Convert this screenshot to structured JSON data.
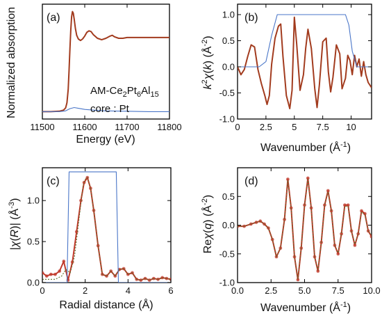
{
  "panels": [
    {
      "id": "a",
      "label": "(a)",
      "type": "line",
      "xlabel": "Energy (eV)",
      "ylabel": "Normalized absorption",
      "xlim": [
        11500,
        11800
      ],
      "ylim": [
        -0.1,
        1.45
      ],
      "xticks": [
        11500,
        11600,
        11700,
        11800
      ],
      "yticks": [],
      "annotations": [
        "AM-Ce2Pt6Al15",
        "core : Pt"
      ],
      "series": [
        {
          "role": "mu",
          "color": "#a23b1e",
          "x": [
            11500,
            11520,
            11540,
            11550,
            11555,
            11558,
            11561,
            11563,
            11565,
            11567,
            11569,
            11571,
            11573,
            11575,
            11578,
            11581,
            11585,
            11590,
            11595,
            11600,
            11605,
            11610,
            11615,
            11620,
            11630,
            11640,
            11650,
            11660,
            11665,
            11670,
            11680,
            11690,
            11700,
            11720,
            11740,
            11760,
            11780,
            11800
          ],
          "y": [
            0.0,
            0.0,
            0.005,
            0.02,
            0.05,
            0.12,
            0.3,
            0.55,
            0.85,
            1.1,
            1.28,
            1.35,
            1.33,
            1.25,
            1.12,
            1.03,
            0.98,
            0.96,
            0.98,
            1.02,
            1.07,
            1.09,
            1.08,
            1.04,
            0.99,
            0.97,
            0.99,
            1.02,
            1.03,
            1.01,
            0.99,
            0.99,
            1.0,
            1.0,
            1.0,
            1.0,
            1.0,
            1.0
          ]
        },
        {
          "role": "background",
          "color": "#4a76c8",
          "x": [
            11500,
            11540,
            11555,
            11565,
            11575,
            11585,
            11600,
            11620,
            11650,
            11700,
            11750,
            11800
          ],
          "y": [
            0.0,
            0.0,
            0.01,
            0.04,
            0.055,
            0.045,
            0.03,
            0.02,
            0.01,
            0.005,
            0.0,
            0.0
          ]
        }
      ]
    },
    {
      "id": "b",
      "label": "(b)",
      "type": "line",
      "xlabel": "Wavenumber (Å⁻¹)",
      "ylabel": "k²χ(k) (Å⁻²)",
      "xlim": [
        0,
        11.8
      ],
      "ylim": [
        -1.0,
        1.2
      ],
      "xticks": [
        0,
        2.5,
        5,
        7.5,
        10
      ],
      "xticklabels": [
        "0",
        "2.5",
        "5",
        "7.5",
        "10"
      ],
      "yticks": [
        -1.0,
        -0.5,
        0.0,
        0.5,
        1.0
      ],
      "yticklabels": [
        "-1.0",
        "-0.5",
        "0.0",
        "0.5",
        "1.0"
      ],
      "series": [
        {
          "role": "k2chi",
          "color": "#a23b1e",
          "x": [
            0,
            0.3,
            0.6,
            0.9,
            1.2,
            1.5,
            1.8,
            2.1,
            2.4,
            2.6,
            2.8,
            3.0,
            3.3,
            3.6,
            3.8,
            4.0,
            4.3,
            4.6,
            4.8,
            5.0,
            5.2,
            5.5,
            5.8,
            6.0,
            6.2,
            6.5,
            6.8,
            7.0,
            7.2,
            7.5,
            7.8,
            8.0,
            8.2,
            8.4,
            8.7,
            9.0,
            9.2,
            9.5,
            9.7,
            9.9,
            10.1,
            10.3,
            10.5,
            10.7,
            10.9,
            11.1,
            11.3,
            11.5,
            11.8
          ],
          "y": [
            0.0,
            -0.15,
            -0.05,
            0.2,
            0.42,
            0.38,
            -0.05,
            -0.32,
            -0.55,
            -0.72,
            -0.55,
            0.05,
            0.55,
            0.78,
            0.82,
            0.2,
            -0.55,
            -0.8,
            -0.45,
            0.95,
            0.45,
            -0.45,
            -0.15,
            0.35,
            0.72,
            0.35,
            -0.42,
            -0.78,
            -0.35,
            0.48,
            0.55,
            -0.1,
            -0.48,
            -0.2,
            0.42,
            0.25,
            -0.42,
            -0.22,
            0.22,
            0.12,
            -0.15,
            0.22,
            0.0,
            0.15,
            -0.18,
            0.1,
            -0.15,
            -0.3,
            -0.4
          ]
        },
        {
          "role": "window",
          "color": "#4a76c8",
          "x": [
            0,
            1.3,
            1.9,
            2.5,
            3.0,
            3.5,
            9.5,
            9.8,
            10.1,
            10.5,
            11.8
          ],
          "y": [
            0,
            0,
            0,
            0.1,
            0.6,
            1.0,
            1.0,
            0.8,
            0.3,
            0.0,
            0.0
          ]
        }
      ]
    },
    {
      "id": "c",
      "label": "(c)",
      "type": "line",
      "xlabel": "Radial distance (Å)",
      "ylabel": "|χ(R)| (Å⁻³)",
      "xlim": [
        0,
        6
      ],
      "ylim": [
        0,
        1.4
      ],
      "xticks": [
        0,
        2,
        4,
        6
      ],
      "xticklabels": [
        "0",
        "2",
        "4",
        "6"
      ],
      "yticks": [
        0.0,
        0.5,
        1.0
      ],
      "yticklabels": [
        "0.0",
        "0.5",
        "1.0"
      ],
      "series": [
        {
          "role": "data",
          "color": "#c0392b",
          "x": [
            0,
            0.2,
            0.4,
            0.6,
            0.8,
            1.0,
            1.2,
            1.4,
            1.6,
            1.8,
            1.95,
            2.1,
            2.25,
            2.4,
            2.6,
            2.8,
            3.0,
            3.2,
            3.4,
            3.6,
            3.8,
            4.0,
            4.2,
            4.4,
            4.6,
            4.8,
            5.0,
            5.2,
            5.4,
            5.6,
            5.8,
            6.0
          ],
          "y": [
            0.12,
            0.08,
            0.1,
            0.1,
            0.14,
            0.26,
            0.03,
            0.25,
            0.62,
            1.0,
            1.22,
            1.28,
            1.15,
            0.88,
            0.45,
            0.1,
            0.08,
            0.14,
            0.08,
            0.16,
            0.17,
            0.1,
            0.12,
            0.04,
            0.03,
            0.05,
            0.03,
            0.05,
            0.04,
            0.06,
            0.05,
            0.04
          ]
        },
        {
          "role": "fit",
          "color": "#5a6e2a",
          "x": [
            0,
            0.3,
            0.6,
            0.9,
            1.1,
            1.3,
            1.5,
            1.7,
            1.9,
            2.0,
            2.1,
            2.25,
            2.4,
            2.6,
            2.8,
            3.0,
            3.2,
            3.4,
            3.6,
            3.8,
            4.0,
            4.2,
            4.4,
            4.6,
            4.8,
            5.0,
            5.2,
            5.4,
            5.6,
            5.8,
            6.0
          ],
          "y": [
            0.04,
            0.04,
            0.04,
            0.08,
            0.16,
            0.12,
            0.32,
            0.75,
            1.18,
            1.26,
            1.28,
            1.15,
            0.88,
            0.45,
            0.1,
            0.08,
            0.14,
            0.08,
            0.16,
            0.17,
            0.1,
            0.12,
            0.04,
            0.03,
            0.05,
            0.03,
            0.05,
            0.04,
            0.06,
            0.05,
            0.04
          ]
        },
        {
          "role": "window",
          "color": "#4a76c8",
          "x": [
            0,
            1.15,
            1.25,
            3.45,
            3.55,
            6.0
          ],
          "y": [
            0,
            0,
            1.35,
            1.35,
            0,
            0
          ]
        }
      ]
    },
    {
      "id": "d",
      "label": "(d)",
      "type": "line",
      "xlabel": "Wavenumber (Å⁻¹)",
      "ylabel": "Reχ(q) (Å⁻²)",
      "xlim": [
        0,
        10
      ],
      "ylim": [
        -1.0,
        1.0
      ],
      "xticks": [
        0,
        2.5,
        5,
        7.5,
        10
      ],
      "xticklabels": [
        "0.0",
        "2.5",
        "5.0",
        "7.5",
        "10.0"
      ],
      "yticks": [
        -1.0,
        -0.5,
        0.0,
        0.5
      ],
      "yticklabels": [
        "-1.0",
        "-0.5",
        "0.0",
        "0.5"
      ],
      "series": [
        {
          "role": "data",
          "color": "#c0392b",
          "x": [
            0,
            0.5,
            1.0,
            1.4,
            1.7,
            2.0,
            2.3,
            2.6,
            2.9,
            3.2,
            3.5,
            3.75,
            4.0,
            4.25,
            4.5,
            4.75,
            5.0,
            5.25,
            5.5,
            5.75,
            6.0,
            6.25,
            6.5,
            6.75,
            7.0,
            7.25,
            7.5,
            7.75,
            8.0,
            8.25,
            8.5,
            8.75,
            9.0,
            9.25,
            9.5,
            9.75,
            10.0
          ],
          "y": [
            -0.02,
            -0.02,
            0.02,
            0.05,
            0.07,
            0.02,
            -0.05,
            -0.25,
            -0.55,
            -0.4,
            0.1,
            0.8,
            0.3,
            -0.55,
            -0.95,
            -0.4,
            0.35,
            0.82,
            0.3,
            -0.55,
            -0.8,
            -0.3,
            0.35,
            0.6,
            0.25,
            -0.35,
            -0.5,
            -0.15,
            0.35,
            0.35,
            -0.1,
            -0.35,
            -0.15,
            0.25,
            0.2,
            -0.1,
            -0.2
          ]
        },
        {
          "role": "fit",
          "color": "#5a6e2a",
          "x": [
            0,
            0.5,
            1.0,
            1.4,
            1.7,
            2.0,
            2.3,
            2.6,
            2.9,
            3.2,
            3.5,
            3.75,
            4.0,
            4.25,
            4.5,
            4.75,
            5.0,
            5.25,
            5.5,
            5.75,
            6.0,
            6.25,
            6.5,
            6.75,
            7.0,
            7.25,
            7.5,
            7.75,
            8.0,
            8.25,
            8.5,
            8.75,
            9.0,
            9.25,
            9.5,
            9.75,
            10.0
          ],
          "y": [
            -0.02,
            -0.02,
            0.02,
            0.05,
            0.07,
            0.02,
            -0.05,
            -0.25,
            -0.55,
            -0.4,
            0.1,
            0.78,
            0.3,
            -0.55,
            -0.93,
            -0.4,
            0.35,
            0.8,
            0.3,
            -0.55,
            -0.78,
            -0.3,
            0.35,
            0.58,
            0.25,
            -0.35,
            -0.48,
            -0.15,
            0.33,
            0.33,
            -0.1,
            -0.33,
            -0.15,
            0.23,
            0.18,
            -0.1,
            -0.18
          ]
        }
      ]
    }
  ],
  "chart_data": [
    {
      "type": "line",
      "panel": "a",
      "xlabel": "Energy (eV)",
      "ylabel": "Normalized absorption",
      "xlim": [
        11500,
        11800
      ]
    },
    {
      "type": "line",
      "panel": "b",
      "xlabel": "Wavenumber (Å⁻¹)",
      "ylabel": "k²χ(k) (Å⁻²)",
      "xlim": [
        0,
        11.8
      ],
      "ylim": [
        -1.0,
        1.2
      ]
    },
    {
      "type": "line",
      "panel": "c",
      "xlabel": "Radial distance (Å)",
      "ylabel": "|χ(R)| (Å⁻³)",
      "xlim": [
        0,
        6
      ],
      "ylim": [
        0,
        1.4
      ]
    },
    {
      "type": "line",
      "panel": "d",
      "xlabel": "Wavenumber (Å⁻¹)",
      "ylabel": "Reχ(q) (Å⁻²)",
      "xlim": [
        0,
        10
      ],
      "ylim": [
        -1.0,
        1.0
      ]
    }
  ]
}
